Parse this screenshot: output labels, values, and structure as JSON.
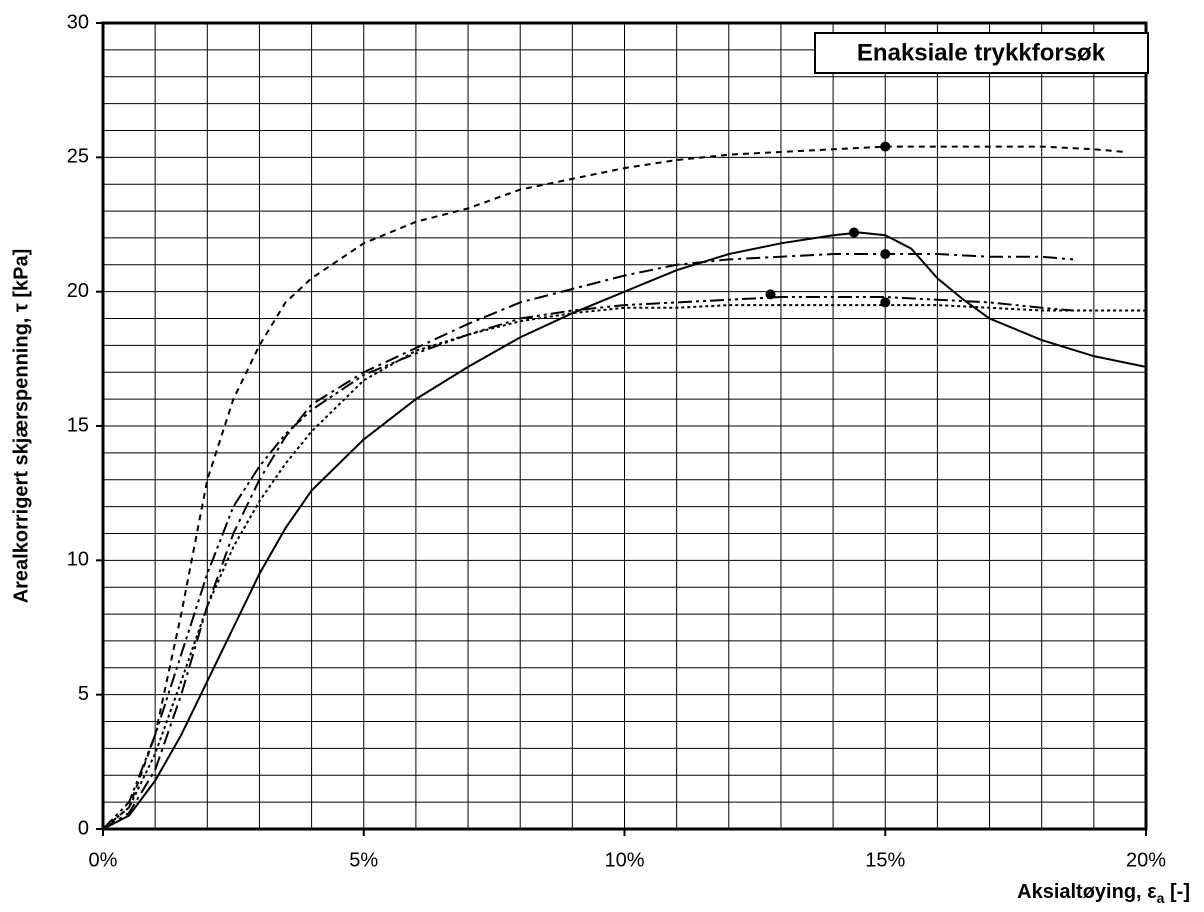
{
  "chart_data": {
    "type": "line",
    "title": "Enaksiale trykkforsøk",
    "ylabel": "Arealkorrigert skjærspenning, τ [kPa]",
    "xlabel_parts": [
      "Aksialtøying, ε",
      "a",
      " [-]"
    ],
    "xlim": [
      0,
      20
    ],
    "ylim": [
      0,
      30
    ],
    "xticks": [
      {
        "value": 0,
        "label": "0%"
      },
      {
        "value": 5,
        "label": "5%"
      },
      {
        "value": 10,
        "label": "10%"
      },
      {
        "value": 15,
        "label": "15%"
      },
      {
        "value": 20,
        "label": "20%"
      }
    ],
    "yticks": [
      0,
      5,
      10,
      15,
      20,
      25,
      30
    ],
    "xgrid": [
      1,
      2,
      3,
      4,
      5,
      6,
      7,
      8,
      9,
      10,
      11,
      12,
      13,
      14,
      15,
      16,
      17,
      18,
      19
    ],
    "ygrid": [
      1,
      2,
      3,
      4,
      5,
      6,
      7,
      8,
      9,
      10,
      11,
      12,
      13,
      14,
      15,
      16,
      17,
      18,
      19,
      20,
      21,
      22,
      23,
      24,
      25,
      26,
      27,
      28,
      29
    ],
    "grid": true,
    "series": [
      {
        "color": "#000000",
        "dash": "6,5",
        "x": [
          0,
          0.5,
          1,
          1.5,
          2,
          2.5,
          3,
          3.5,
          4,
          5,
          6,
          7,
          8,
          9,
          10,
          11,
          12,
          13,
          14,
          15,
          16,
          17,
          18,
          19,
          19.6
        ],
        "values": [
          0,
          0.8,
          3.5,
          8,
          13,
          16,
          18,
          19.6,
          20.5,
          21.8,
          22.6,
          23.1,
          23.8,
          24.2,
          24.6,
          24.9,
          25.1,
          25.2,
          25.3,
          25.4,
          25.4,
          25.4,
          25.4,
          25.3,
          25.2
        ],
        "marker": {
          "x": 15,
          "y": 25.4
        }
      },
      {
        "color": "#000000",
        "dash": "none",
        "x": [
          0,
          0.5,
          1,
          1.5,
          2,
          2.5,
          3,
          3.5,
          4,
          5,
          6,
          7,
          8,
          9,
          10,
          11,
          12,
          13,
          14,
          14.5,
          15,
          15.5,
          16,
          16.5,
          17,
          18,
          19,
          20
        ],
        "values": [
          0,
          0.5,
          1.8,
          3.5,
          5.5,
          7.5,
          9.5,
          11.2,
          12.6,
          14.5,
          16,
          17.2,
          18.3,
          19.2,
          20,
          20.8,
          21.4,
          21.8,
          22.1,
          22.2,
          22.1,
          21.6,
          20.5,
          19.7,
          19,
          18.2,
          17.6,
          17.2
        ],
        "marker": {
          "x": 14.4,
          "y": 22.2
        }
      },
      {
        "color": "#000000",
        "dash": "14,5,3,5",
        "x": [
          0,
          0.5,
          1,
          1.5,
          2,
          2.5,
          3,
          3.5,
          4,
          5,
          6,
          7,
          8,
          9,
          10,
          11,
          12,
          13,
          14,
          15,
          16,
          17,
          18,
          18.6
        ],
        "values": [
          0,
          0.6,
          2.2,
          5,
          8.3,
          11,
          13,
          14.6,
          15.8,
          17,
          17.9,
          18.8,
          19.6,
          20.1,
          20.6,
          21,
          21.2,
          21.3,
          21.4,
          21.4,
          21.4,
          21.3,
          21.3,
          21.2
        ],
        "marker": {
          "x": 15,
          "y": 21.4
        }
      },
      {
        "color": "#000000",
        "dash": "14,4,3,4,3,4",
        "x": [
          0,
          0.5,
          1,
          1.5,
          2,
          2.5,
          3,
          3.5,
          4,
          5,
          6,
          7,
          8,
          9,
          10,
          11,
          12,
          13,
          14,
          15,
          16,
          17,
          18,
          18.6
        ],
        "values": [
          0,
          1,
          3.5,
          6.5,
          9.5,
          12,
          13.5,
          14.7,
          15.6,
          16.9,
          17.7,
          18.4,
          19,
          19.3,
          19.5,
          19.6,
          19.7,
          19.8,
          19.8,
          19.8,
          19.7,
          19.6,
          19.4,
          19.3
        ],
        "marker": {
          "x": 12.8,
          "y": 19.9
        }
      },
      {
        "color": "#000000",
        "dash": "3,3",
        "x": [
          0,
          0.5,
          1,
          1.5,
          2,
          2.5,
          3,
          3.5,
          4,
          5,
          6,
          7,
          8,
          9,
          10,
          11,
          12,
          13,
          14,
          15,
          16,
          17,
          18,
          19,
          20
        ],
        "values": [
          0,
          0.8,
          2.8,
          5.5,
          8.3,
          10.5,
          12.2,
          13.6,
          14.8,
          16.7,
          17.8,
          18.4,
          18.9,
          19.2,
          19.4,
          19.4,
          19.5,
          19.5,
          19.5,
          19.5,
          19.5,
          19.4,
          19.3,
          19.3,
          19.3
        ],
        "marker": {
          "x": 15,
          "y": 19.6
        }
      }
    ]
  }
}
